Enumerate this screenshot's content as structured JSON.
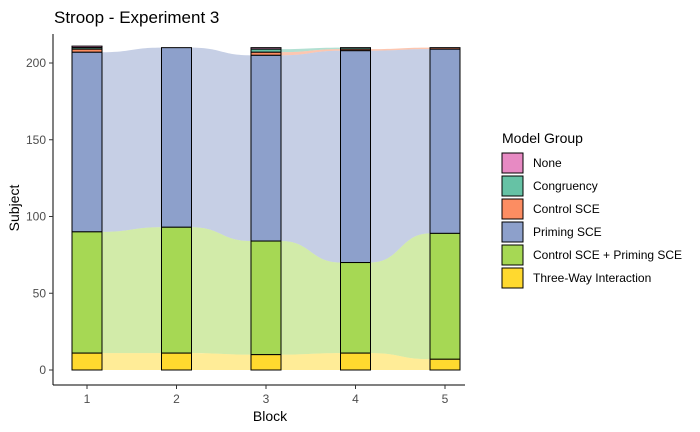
{
  "chart_data": {
    "type": "alluvial",
    "title": "Stroop - Experiment 3",
    "xlabel": "Block",
    "ylabel": "Subject",
    "categories": [
      "1",
      "2",
      "3",
      "4",
      "5"
    ],
    "ylim": [
      0,
      210
    ],
    "yticks": [
      0,
      50,
      100,
      150,
      200
    ],
    "grid": false,
    "legend": {
      "title": "Model Group",
      "placement": "right",
      "entries": [
        "None",
        "Congruency",
        "Control SCE",
        "Priming SCE",
        "Control SCE + Priming SCE",
        "Three-Way Interaction"
      ]
    },
    "stack_order_top_to_bottom": [
      "None",
      "Congruency",
      "Control SCE",
      "Priming SCE",
      "Control SCE + Priming SCE",
      "Three-Way Interaction"
    ],
    "series": [
      {
        "name": "None",
        "color": "#E78AC3",
        "values": [
          1,
          0,
          1,
          0,
          0
        ]
      },
      {
        "name": "Congruency",
        "color": "#66C2A5",
        "values": [
          1,
          0,
          2,
          1,
          0
        ]
      },
      {
        "name": "Control SCE",
        "color": "#FC8D62",
        "values": [
          2,
          0,
          2,
          1,
          1
        ]
      },
      {
        "name": "Priming SCE",
        "color": "#8DA0CB",
        "values": [
          117,
          117,
          121,
          138,
          120
        ]
      },
      {
        "name": "Control SCE + Priming SCE",
        "color": "#A6D854",
        "values": [
          79,
          82,
          74,
          59,
          82
        ]
      },
      {
        "name": "Three-Way Interaction",
        "color": "#FFD92F",
        "values": [
          11,
          11,
          10,
          11,
          7
        ]
      }
    ]
  }
}
